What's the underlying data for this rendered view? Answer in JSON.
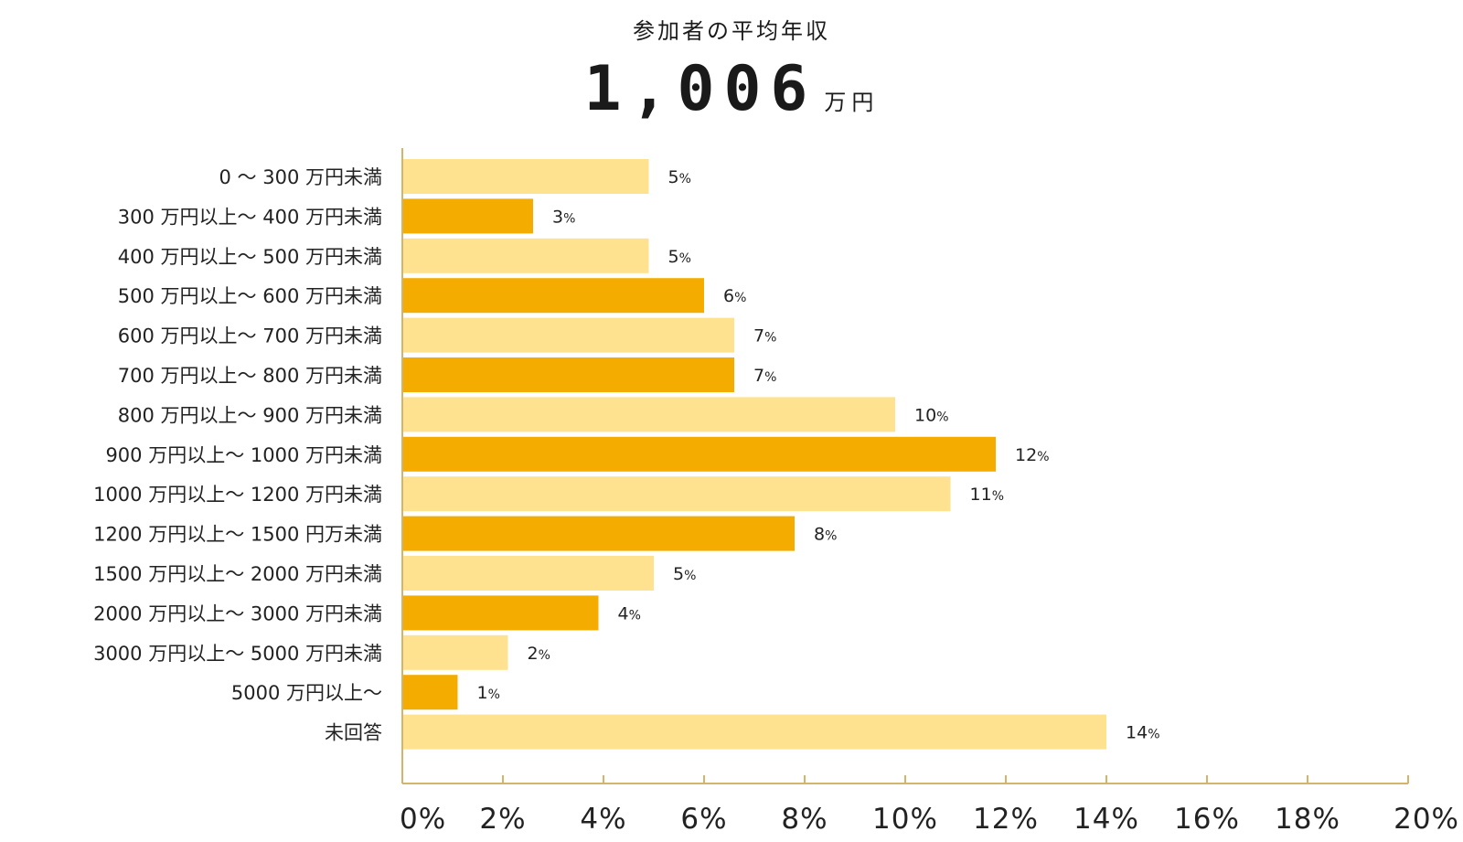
{
  "header": {
    "subtitle": "参加者の平均年収",
    "headline_value": "1,006",
    "headline_unit": "万円"
  },
  "colors": {
    "light_bar": "#FFE28F",
    "dark_bar": "#F4AC00",
    "axis": "#D4B36A"
  },
  "chart_data": {
    "type": "bar",
    "orientation": "horizontal",
    "categories": [
      "0 〜 300 万円未満",
      "300 万円以上〜 400 万円未満",
      "400 万円以上〜 500 万円未満",
      "500 万円以上〜 600 万円未満",
      "600 万円以上〜 700 万円未満",
      "700 万円以上〜 800 万円未満",
      "800 万円以上〜 900 万円未満",
      "900 万円以上〜 1000 万円未満",
      "1000 万円以上〜 1200 万円未満",
      "1200 万円以上〜 1500 円万未満",
      "1500 万円以上〜 2000 万円未満",
      "2000 万円以上〜 3000 万円未満",
      "3000 万円以上〜 5000 万円未満",
      "5000 万円以上〜",
      "未回答"
    ],
    "values": [
      4.9,
      2.6,
      4.9,
      6.0,
      6.6,
      6.6,
      9.8,
      11.8,
      10.9,
      7.8,
      5.0,
      3.9,
      2.1,
      1.1,
      14.0
    ],
    "data_labels": [
      "5",
      "3",
      "5",
      "6",
      "7",
      "7",
      "10",
      "12",
      "11",
      "8",
      "5",
      "4",
      "2",
      "1",
      "14"
    ],
    "label_unit": "%",
    "xlim": [
      0,
      20
    ],
    "xticks": [
      0,
      2,
      4,
      6,
      8,
      10,
      12,
      14,
      16,
      18,
      20
    ],
    "xtick_labels": [
      "0%",
      "2%",
      "4%",
      "6%",
      "8%",
      "10%",
      "12%",
      "14%",
      "16%",
      "18%",
      "20%"
    ],
    "grid": false,
    "legend": "none"
  }
}
